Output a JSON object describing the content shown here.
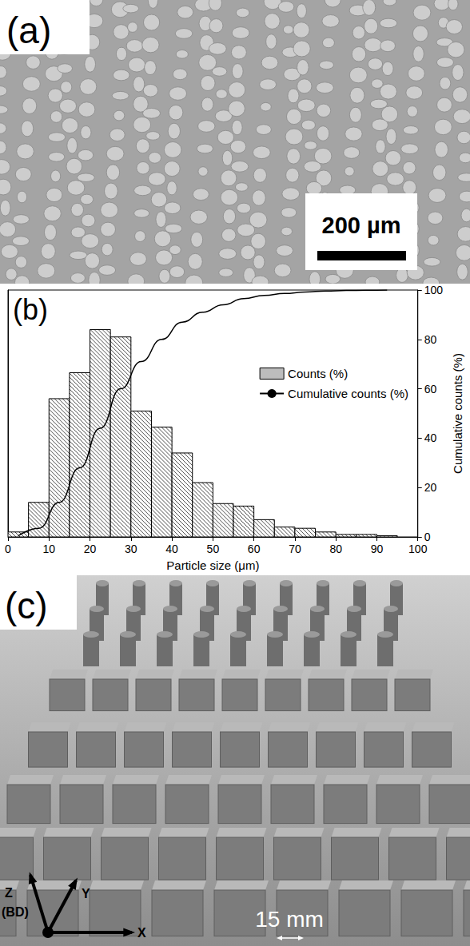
{
  "chart_data": {
    "type": "histogram",
    "panel": "(b)",
    "x_label": "Particle size (μm)",
    "y2_label": "Cumulative counts (%)",
    "bins": [
      0,
      5,
      10,
      15,
      20,
      25,
      30,
      35,
      40,
      45,
      50,
      55,
      60,
      65,
      70,
      75,
      80,
      85,
      90,
      95
    ],
    "series": [
      {
        "name": "Counts (%)",
        "type": "bar",
        "color": "#000000",
        "marker": "hatch",
        "values": [
          0.4,
          2.8,
          11.2,
          13.3,
          16.8,
          16.2,
          10.2,
          8.9,
          6.8,
          4.4,
          2.7,
          2.5,
          1.4,
          0.8,
          0.7,
          0.4,
          0.2,
          0.2,
          0.1
        ]
      },
      {
        "name": "Cumulative counts (%)",
        "type": "line",
        "axis": "y2",
        "color": "#000000",
        "line_style": "solid",
        "x": [
          2.5,
          7.5,
          12.5,
          17.5,
          22.5,
          27.5,
          32.5,
          37.5,
          42.5,
          47.5,
          52.5,
          57.5,
          62.5,
          67.5,
          72.5,
          77.5,
          82.5,
          87.5,
          92.5
        ],
        "values": [
          0.4,
          3.5,
          14,
          28,
          44,
          60,
          71,
          80,
          87,
          91,
          94,
          96.5,
          97.8,
          98.6,
          99.2,
          99.6,
          99.8,
          99.9,
          100
        ]
      }
    ],
    "xlim": [
      0,
      100
    ],
    "xticks": [
      0,
      10,
      20,
      30,
      40,
      50,
      60,
      70,
      80,
      90,
      100
    ],
    "ylim": [
      0,
      20
    ],
    "y2lim": [
      0,
      100
    ],
    "y2ticks": [
      0,
      20,
      40,
      60,
      80,
      100
    ],
    "legend": "upper right",
    "grid": false
  },
  "image_panels": {
    "sem": {
      "label": "(a)",
      "scale_bar": "200 µm"
    },
    "photo": {
      "label": "(c)",
      "axis_z": "Z",
      "axis_z_note": "(BD)",
      "axis_y": "Y",
      "axis_x": "X",
      "scale_bar": "15 mm"
    }
  }
}
